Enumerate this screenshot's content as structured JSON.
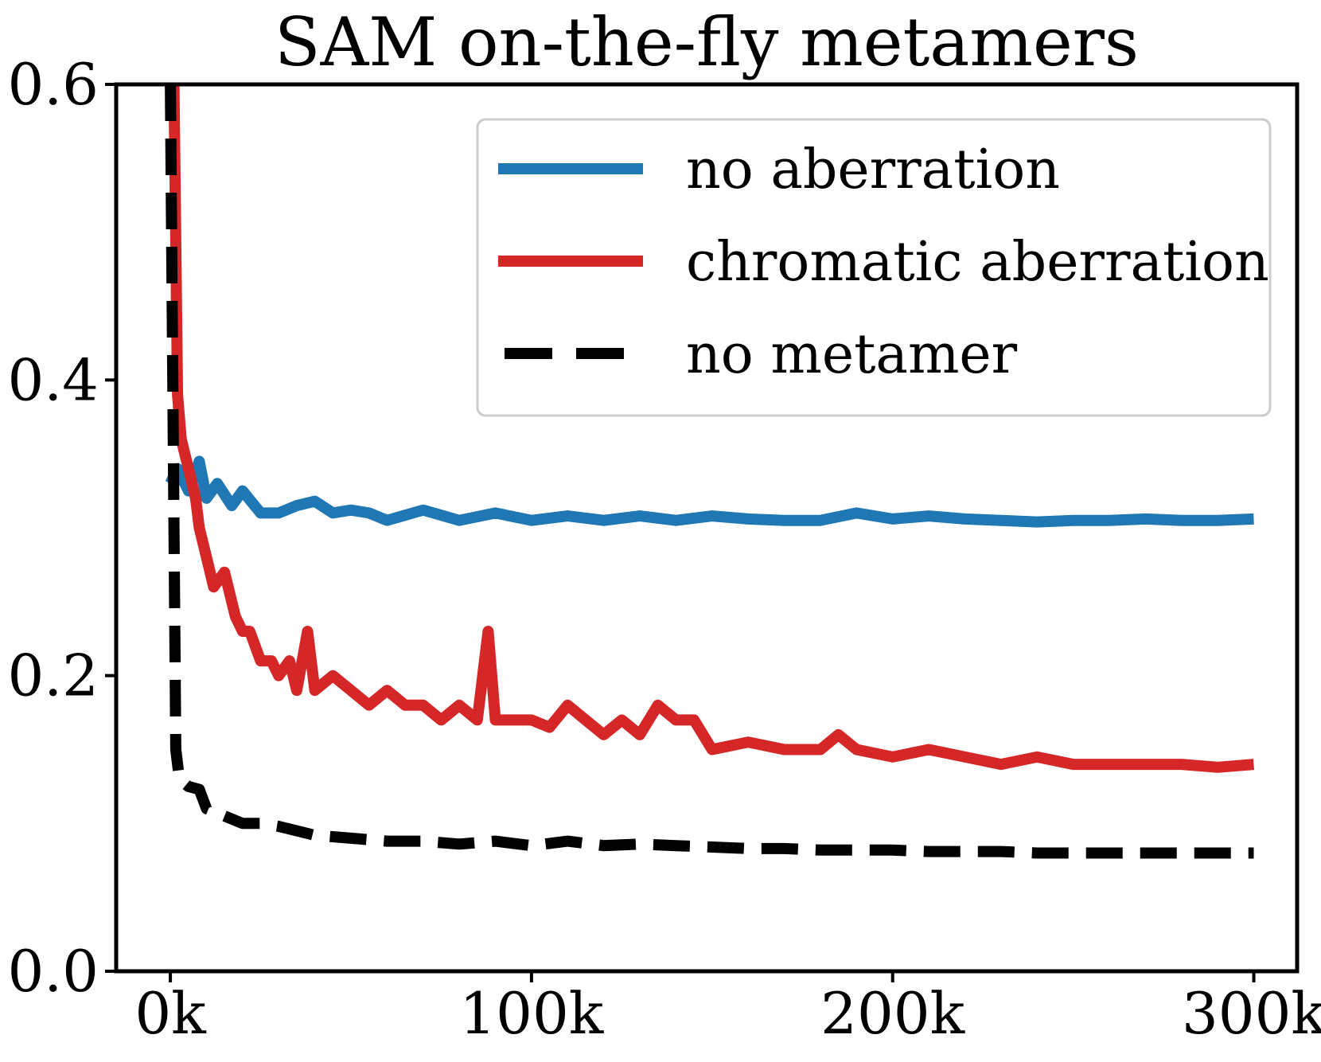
{
  "chart_data": {
    "type": "line",
    "title": "SAM on-the-fly metamers",
    "xlabel": "",
    "ylabel": "",
    "xlim": [
      -15000,
      312000
    ],
    "ylim": [
      0,
      0.6
    ],
    "x_ticks": [
      0,
      100000,
      200000,
      300000
    ],
    "x_tick_labels": [
      "0k",
      "100k",
      "200k",
      "300k"
    ],
    "y_ticks": [
      0.0,
      0.2,
      0.4,
      0.6
    ],
    "y_tick_labels": [
      "0.0",
      "0.2",
      "0.4",
      "0.6"
    ],
    "grid": false,
    "legend_position": "top-right",
    "series": [
      {
        "name": "no aberration",
        "color": "#1f77b4",
        "style": "solid",
        "x": [
          0,
          2000,
          5000,
          8000,
          10000,
          13000,
          17000,
          20000,
          25000,
          30000,
          35000,
          40000,
          45000,
          50000,
          55000,
          60000,
          70000,
          80000,
          90000,
          100000,
          110000,
          120000,
          130000,
          140000,
          150000,
          160000,
          170000,
          180000,
          190000,
          200000,
          210000,
          220000,
          230000,
          240000,
          250000,
          260000,
          270000,
          280000,
          290000,
          300000
        ],
        "values": [
          0.33,
          0.34,
          0.325,
          0.345,
          0.32,
          0.33,
          0.315,
          0.325,
          0.31,
          0.31,
          0.315,
          0.318,
          0.31,
          0.312,
          0.31,
          0.305,
          0.312,
          0.305,
          0.31,
          0.305,
          0.308,
          0.305,
          0.308,
          0.305,
          0.308,
          0.306,
          0.305,
          0.305,
          0.31,
          0.306,
          0.308,
          0.306,
          0.305,
          0.304,
          0.305,
          0.305,
          0.306,
          0.305,
          0.305,
          0.306
        ]
      },
      {
        "name": "chromatic aberration",
        "color": "#d62728",
        "style": "solid",
        "x": [
          0,
          1000,
          2000,
          3000,
          5000,
          7000,
          8000,
          10000,
          12000,
          15000,
          18000,
          20000,
          22000,
          25000,
          28000,
          30000,
          33000,
          35000,
          38000,
          40000,
          45000,
          50000,
          55000,
          60000,
          65000,
          70000,
          75000,
          80000,
          85000,
          88000,
          90000,
          95000,
          100000,
          105000,
          110000,
          115000,
          120000,
          125000,
          130000,
          135000,
          140000,
          145000,
          150000,
          160000,
          170000,
          180000,
          185000,
          190000,
          200000,
          210000,
          220000,
          230000,
          240000,
          250000,
          260000,
          270000,
          280000,
          290000,
          300000
        ],
        "values": [
          0.6,
          0.6,
          0.39,
          0.36,
          0.34,
          0.32,
          0.3,
          0.28,
          0.26,
          0.27,
          0.24,
          0.23,
          0.23,
          0.21,
          0.21,
          0.2,
          0.21,
          0.19,
          0.23,
          0.19,
          0.2,
          0.19,
          0.18,
          0.19,
          0.18,
          0.18,
          0.17,
          0.18,
          0.17,
          0.23,
          0.17,
          0.17,
          0.17,
          0.165,
          0.18,
          0.17,
          0.16,
          0.17,
          0.16,
          0.18,
          0.17,
          0.17,
          0.15,
          0.155,
          0.15,
          0.15,
          0.16,
          0.15,
          0.145,
          0.15,
          0.145,
          0.14,
          0.145,
          0.14,
          0.14,
          0.14,
          0.14,
          0.138,
          0.14
        ]
      },
      {
        "name": "no metamer",
        "color": "#000000",
        "style": "dashed",
        "x": [
          0,
          1500,
          2500,
          5000,
          8000,
          10000,
          15000,
          20000,
          25000,
          30000,
          40000,
          50000,
          60000,
          70000,
          80000,
          90000,
          100000,
          110000,
          120000,
          130000,
          140000,
          150000,
          160000,
          170000,
          180000,
          190000,
          200000,
          210000,
          220000,
          230000,
          240000,
          250000,
          260000,
          270000,
          280000,
          290000,
          300000
        ],
        "values": [
          0.6,
          0.15,
          0.13,
          0.125,
          0.123,
          0.11,
          0.105,
          0.1,
          0.1,
          0.098,
          0.092,
          0.09,
          0.088,
          0.088,
          0.086,
          0.088,
          0.085,
          0.088,
          0.085,
          0.086,
          0.085,
          0.084,
          0.083,
          0.083,
          0.082,
          0.082,
          0.082,
          0.081,
          0.081,
          0.081,
          0.08,
          0.08,
          0.08,
          0.08,
          0.08,
          0.08,
          0.08
        ]
      }
    ]
  }
}
